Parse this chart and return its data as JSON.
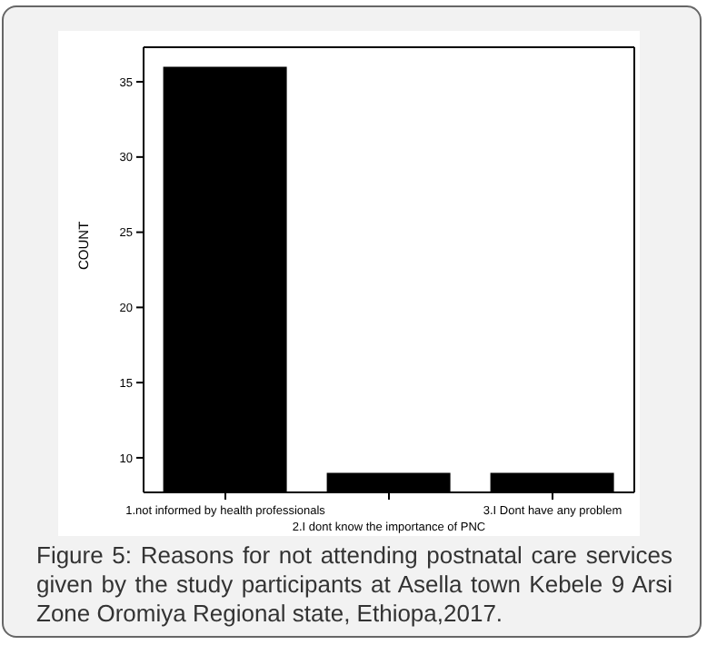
{
  "chart_data": {
    "type": "bar",
    "categories": [
      "1.not informed by health professionals",
      "2.I dont know the importance of PNC",
      "3.I Dont have any problem"
    ],
    "values": [
      36,
      9,
      9
    ],
    "color": "#000000",
    "ylabel": "COUNT",
    "ylim": [
      7.7,
      37.3
    ],
    "yticks": [
      10,
      15,
      20,
      25,
      30,
      35
    ],
    "grid": false,
    "legend": false,
    "annotations": [
      "Figure 5: Reasons for not attending postnatal care services given by the study participants at Asella town Kebele 9 Arsi Zone Oromiya Regional state, Ethiopa,2017."
    ]
  }
}
